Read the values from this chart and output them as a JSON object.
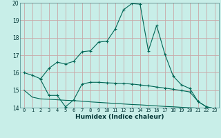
{
  "title": "",
  "xlabel": "Humidex (Indice chaleur)",
  "bg_color": "#c8eee8",
  "grid_color": "#c8a8a8",
  "line_color": "#006655",
  "xlim": [
    -0.5,
    23.5
  ],
  "ylim": [
    14,
    20
  ],
  "xticks": [
    0,
    1,
    2,
    3,
    4,
    5,
    6,
    7,
    8,
    9,
    10,
    11,
    12,
    13,
    14,
    15,
    16,
    17,
    18,
    19,
    20,
    21,
    22,
    23
  ],
  "yticks": [
    14,
    15,
    16,
    17,
    18,
    19,
    20
  ],
  "line1_x": [
    0,
    1,
    2,
    3,
    4,
    5,
    6,
    7,
    8,
    9,
    10,
    11,
    12,
    13,
    14,
    15,
    16,
    17,
    18,
    19,
    20,
    21,
    22,
    23
  ],
  "line1_y": [
    16.0,
    15.85,
    15.65,
    16.25,
    16.6,
    16.5,
    16.65,
    17.2,
    17.25,
    17.75,
    17.8,
    18.5,
    19.6,
    19.95,
    19.92,
    17.25,
    18.7,
    17.05,
    15.8,
    15.3,
    15.1,
    14.35,
    14.05,
    13.95
  ],
  "line2_x": [
    2,
    3,
    4,
    5,
    6,
    7,
    8,
    9,
    10,
    11,
    12,
    13,
    14,
    15,
    16,
    17,
    18,
    19,
    20,
    21,
    22,
    23
  ],
  "line2_y": [
    15.6,
    14.7,
    14.7,
    14.05,
    14.45,
    15.35,
    15.45,
    15.45,
    15.42,
    15.4,
    15.38,
    15.35,
    15.3,
    15.25,
    15.18,
    15.12,
    15.05,
    14.98,
    14.9,
    14.35,
    14.05,
    13.95
  ],
  "line3_x": [
    0,
    1,
    2,
    3,
    4,
    5,
    6,
    7,
    8,
    9,
    10,
    11,
    12,
    13,
    14,
    15,
    16,
    17,
    18,
    19,
    20,
    21,
    22,
    23
  ],
  "line3_y": [
    15.0,
    14.6,
    14.5,
    14.48,
    14.45,
    14.42,
    14.4,
    14.37,
    14.33,
    14.3,
    14.27,
    14.24,
    14.21,
    14.18,
    14.16,
    14.13,
    14.1,
    14.07,
    14.05,
    14.02,
    14.0,
    13.98,
    13.97,
    13.95
  ]
}
